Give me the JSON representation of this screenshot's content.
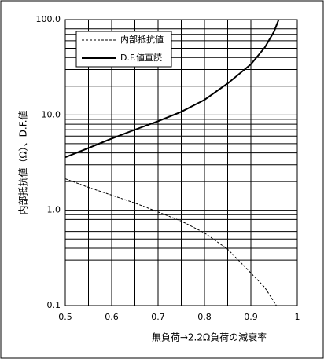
{
  "chart_data": {
    "type": "line",
    "xlabel": "無負荷→2.2Ω負荷の減衰率",
    "ylabel": "内部抵抗値（Ω）、D.F.値",
    "xlim": [
      0.5,
      1
    ],
    "ylim": [
      0.1,
      100
    ],
    "yscale": "log",
    "grid": true,
    "legend": "upper-left",
    "xticks": [
      0.5,
      0.6,
      0.7,
      0.8,
      0.9,
      1
    ],
    "minor_xticks": [
      0.55,
      0.65,
      0.75,
      0.85,
      0.95
    ],
    "yticks": [
      0.1,
      {
        "value": 1,
        "label": "1.0"
      },
      {
        "value": 10,
        "label": "10.0"
      },
      {
        "value": 100,
        "label": "100.0"
      }
    ],
    "minor_yticks": [
      0.2,
      0.3,
      0.4,
      0.5,
      0.6,
      0.7,
      0.8,
      0.9,
      2,
      3,
      4,
      5,
      6,
      7,
      8,
      9,
      20,
      30,
      40,
      50,
      60,
      70,
      80,
      90
    ],
    "series": [
      {
        "name": "内部抵抗値",
        "color": "#000000",
        "dash": true,
        "x": [
          0.5,
          0.55,
          0.6,
          0.65,
          0.7,
          0.75,
          0.8,
          0.85,
          0.9,
          0.93,
          0.955
        ],
        "values": [
          2.14,
          1.74,
          1.44,
          1.19,
          0.96,
          0.77,
          0.58,
          0.39,
          0.22,
          0.155,
          0.1
        ]
      },
      {
        "name": "D.F.値直読",
        "color": "#000000",
        "dash": false,
        "x": [
          0.5,
          0.55,
          0.6,
          0.65,
          0.7,
          0.75,
          0.8,
          0.85,
          0.9,
          0.93,
          0.95,
          0.96
        ],
        "values": [
          3.6,
          4.5,
          5.65,
          7.0,
          8.6,
          10.8,
          14.4,
          21.4,
          34,
          51,
          75,
          100
        ]
      }
    ]
  }
}
